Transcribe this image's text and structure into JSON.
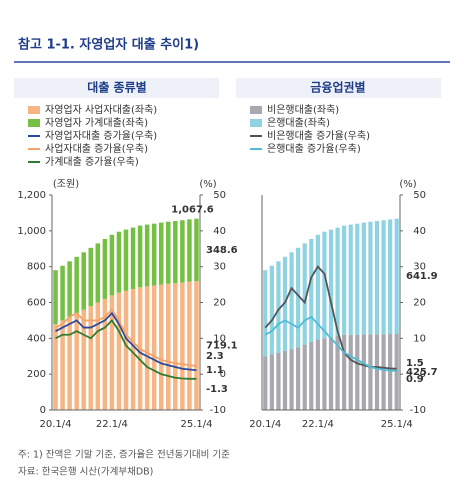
{
  "title": "참고 1-1. 자영업자 대출 추이1)",
  "notes": [
    "주: 1) 잔액은 기말 기준, 증가율은 전년동기대비 기준",
    "자료: 한국은행 시산(가계부채DB)"
  ],
  "chart_data": [
    {
      "type": "bar",
      "title": "대출 종류별",
      "y_label": "(조원)",
      "y2_label": "(%)",
      "categories": [
        "20.1/4",
        null,
        null,
        null,
        null,
        null,
        null,
        null,
        "22.1/4",
        null,
        null,
        null,
        null,
        null,
        null,
        null,
        null,
        null,
        null,
        null,
        "25.1/4"
      ],
      "series": [
        {
          "name": "자영업자 사업자대출(좌축)",
          "color": "#f6b582",
          "type": "bar",
          "values": [
            480,
            500,
            520,
            540,
            560,
            580,
            600,
            620,
            640,
            655,
            665,
            675,
            685,
            690,
            695,
            700,
            705,
            708,
            712,
            716,
            719.1
          ]
        },
        {
          "name": "자영업자 가계대출(좌축)",
          "color": "#74c043",
          "type": "bar",
          "values": [
            300,
            305,
            310,
            315,
            320,
            325,
            330,
            335,
            338,
            340,
            342,
            343,
            344,
            345,
            345,
            346,
            346,
            347,
            347,
            348,
            348.6
          ]
        },
        {
          "name": "자영업자대출 증가율(우축)",
          "color": "#2b4a9e",
          "type": "line",
          "axis": "y2",
          "values": [
            12,
            13,
            14,
            15,
            13,
            13,
            14,
            15,
            17,
            14,
            10,
            8,
            6,
            5,
            4,
            3,
            2.5,
            2,
            1.5,
            1.3,
            1.1
          ]
        },
        {
          "name": "사업자대출 증가율(우축)",
          "color": "#f4a46a",
          "type": "line",
          "axis": "y2",
          "values": [
            13,
            14,
            16,
            17,
            15,
            15,
            15,
            16,
            18,
            15,
            11,
            9,
            7,
            6,
            5,
            4,
            3.5,
            3,
            2.8,
            2.5,
            2.3
          ]
        },
        {
          "name": "가계대출 증가율(우축)",
          "color": "#2e7d32",
          "type": "line",
          "axis": "y2",
          "values": [
            10,
            11,
            11,
            12,
            11,
            10,
            12,
            13,
            15,
            12,
            8,
            6,
            4,
            2,
            1,
            0,
            -0.5,
            -1,
            -1.2,
            -1.3,
            -1.3
          ]
        }
      ],
      "ylim": [
        0,
        1200
      ],
      "yticks": [
        0,
        200,
        400,
        600,
        800,
        {
          "value": 1000,
          "label": "1,000"
        },
        {
          "value": 1200,
          "label": "1,200"
        }
      ],
      "y2lim": [
        -10,
        50
      ],
      "y2ticks": [
        -10,
        0,
        10,
        20,
        30,
        40,
        50
      ],
      "annotations": [
        {
          "text": "1,067.6"
        }
      ]
    },
    {
      "type": "bar",
      "title": "금융업권별",
      "y2_label": "(%)",
      "categories": [
        "20.1/4",
        null,
        null,
        null,
        null,
        null,
        null,
        null,
        "22.1/4",
        null,
        null,
        null,
        null,
        null,
        null,
        null,
        null,
        null,
        null,
        null,
        "25.1/4"
      ],
      "series": [
        {
          "name": "비은행대출(좌축)",
          "color": "#a8a8ae",
          "type": "bar",
          "values": [
            300,
            310,
            320,
            330,
            340,
            350,
            365,
            380,
            393,
            400,
            407,
            413,
            419,
            420,
            420,
            421,
            423,
            423,
            423,
            424,
            425.7
          ]
        },
        {
          "name": "은행대출(좌축)",
          "color": "#8fd3e2",
          "type": "bar",
          "values": [
            480,
            495,
            510,
            525,
            540,
            555,
            565,
            575,
            585,
            595,
            600,
            605,
            610,
            615,
            620,
            625,
            628,
            632,
            636,
            640,
            641.9
          ]
        },
        {
          "name": "비은행대출 증가율(우축)",
          "color": "#555558",
          "type": "line",
          "axis": "y2",
          "values": [
            13,
            15,
            18,
            20,
            24,
            22,
            20,
            27,
            30,
            28,
            20,
            12,
            6,
            4,
            3,
            2.5,
            2,
            2,
            1.8,
            1.6,
            1.5
          ]
        },
        {
          "name": "은행대출 증가율(우축)",
          "color": "#4fbcd8",
          "type": "line",
          "axis": "y2",
          "values": [
            11,
            12,
            14,
            15,
            14,
            13,
            15,
            16,
            14,
            12,
            10,
            8,
            6,
            5,
            4,
            3,
            2,
            1.5,
            1.2,
            1,
            0.9
          ]
        }
      ],
      "ylim": [
        0,
        1200
      ],
      "y2lim": [
        -10,
        50
      ],
      "y2ticks": [
        -10,
        0,
        10,
        20,
        30,
        40,
        50
      ]
    }
  ]
}
